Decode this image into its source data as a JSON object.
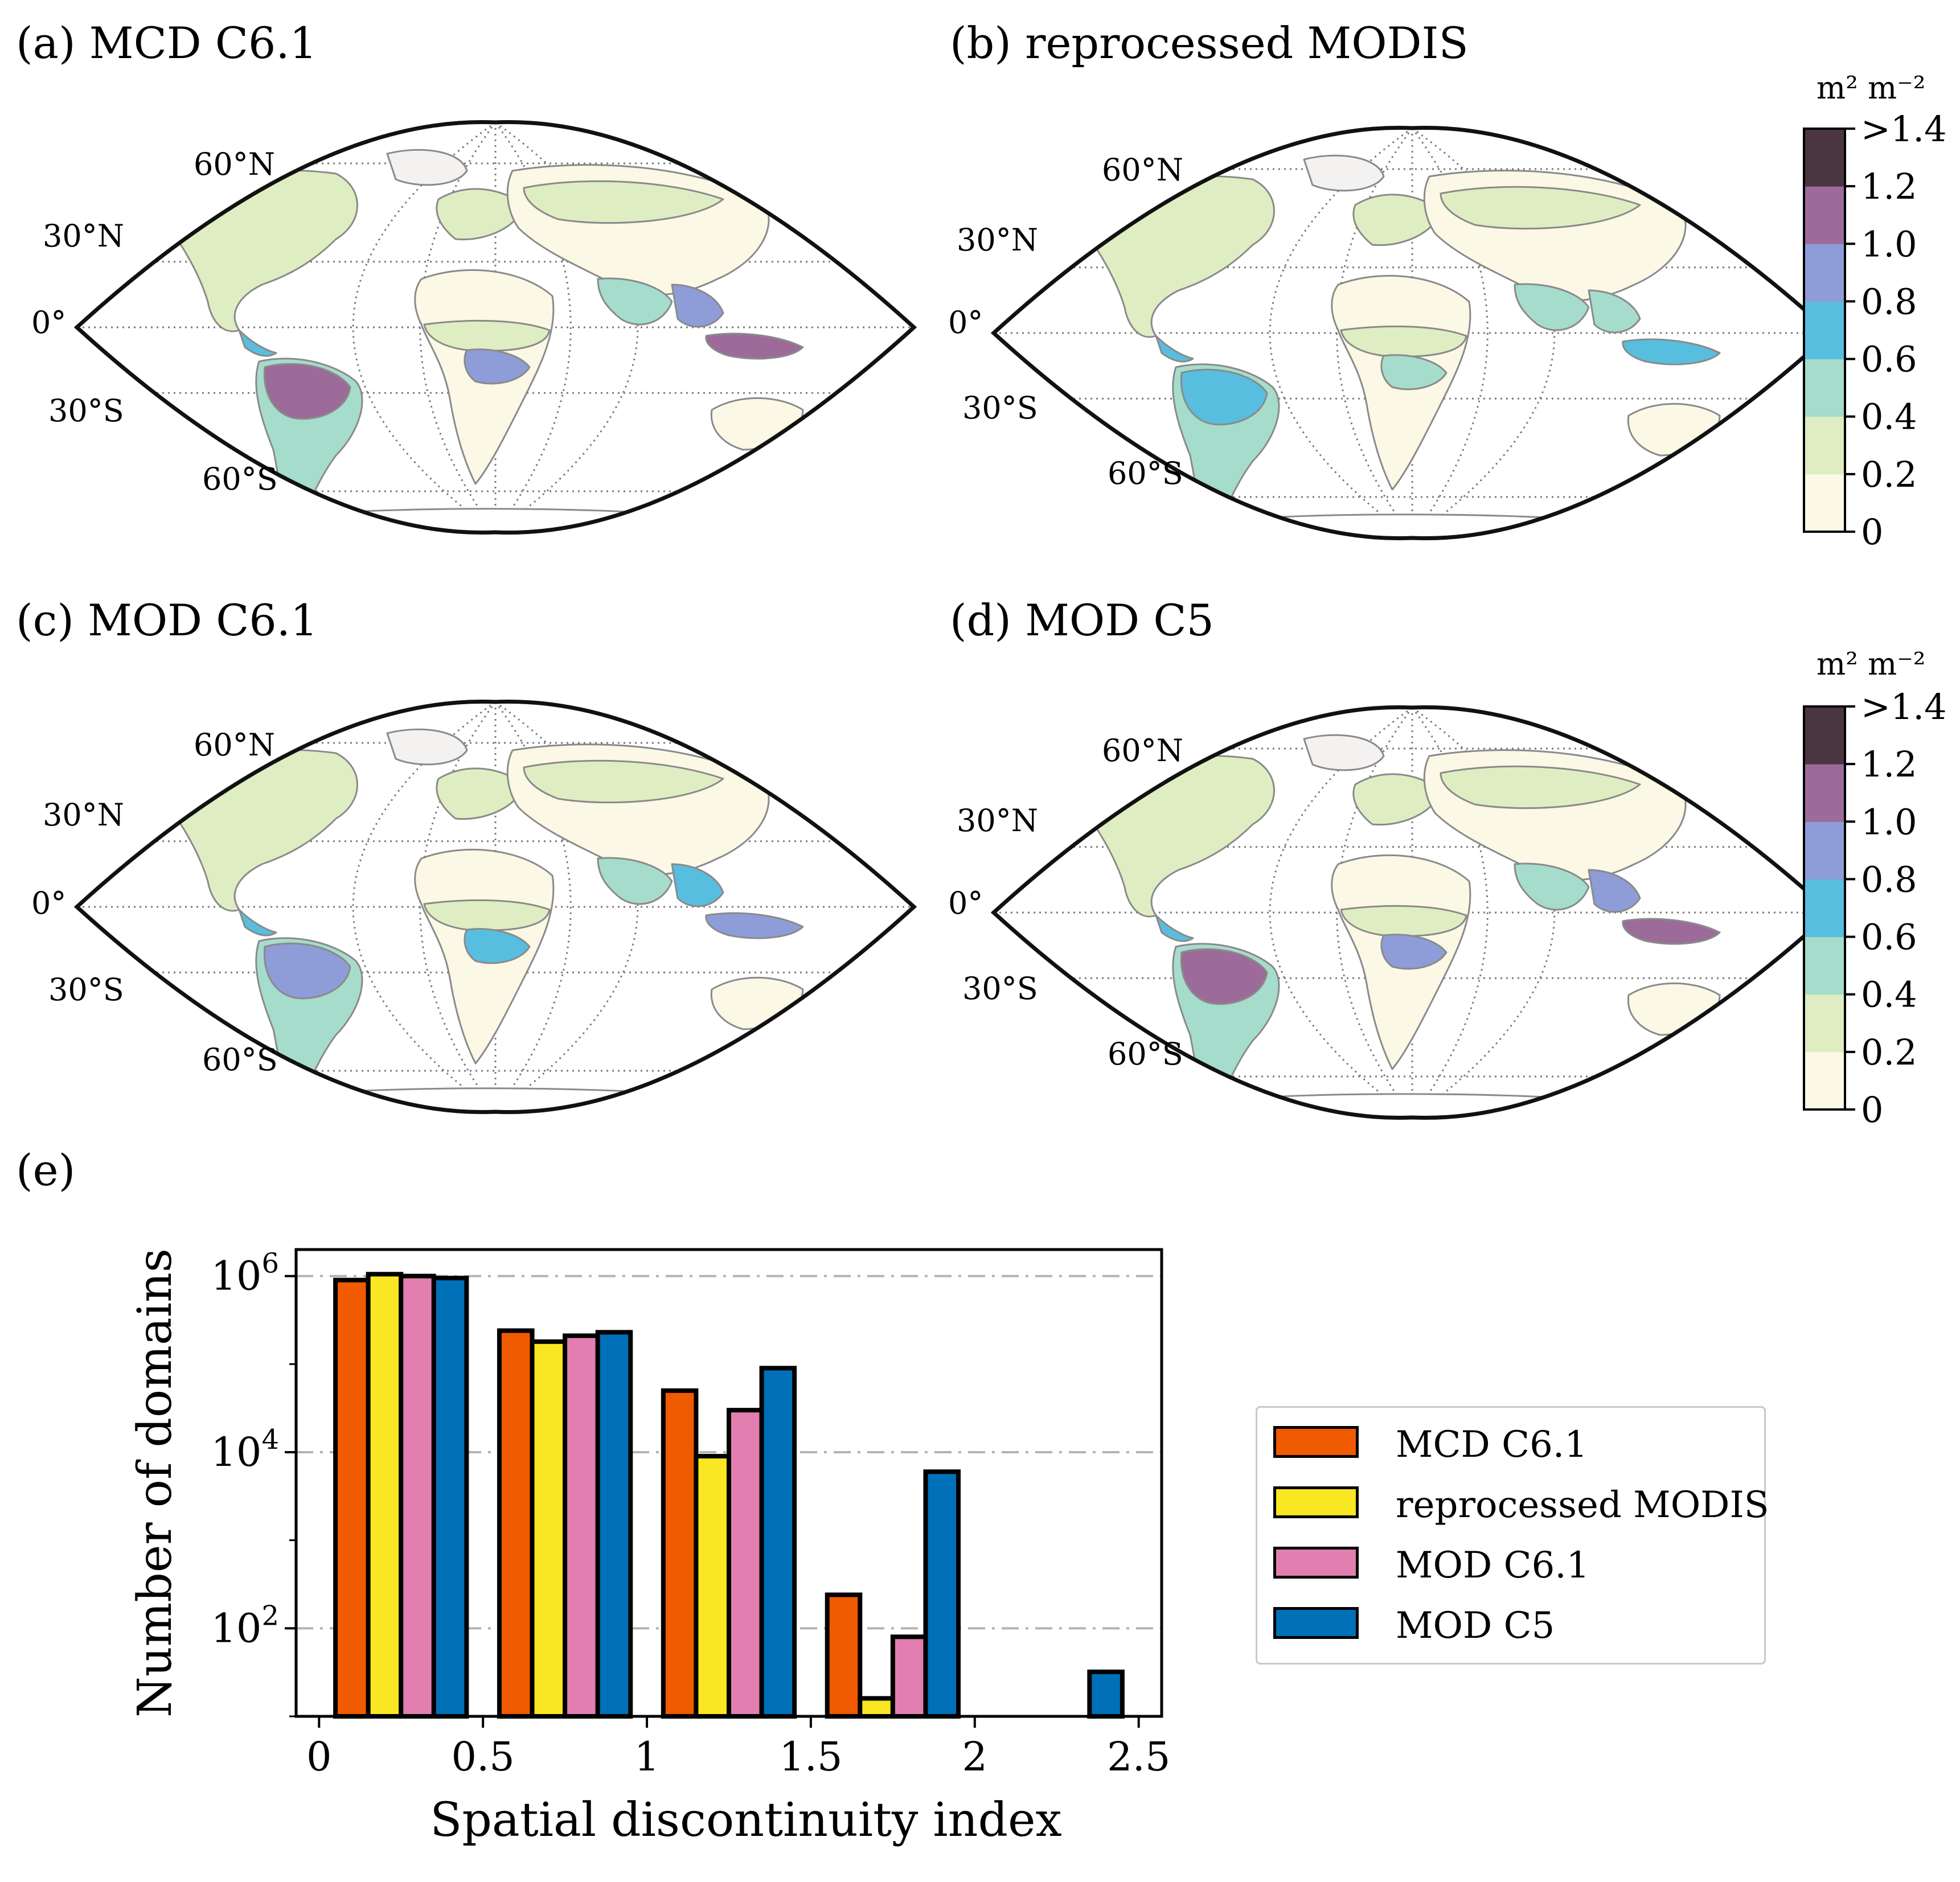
{
  "panels": [
    {
      "label": "(a) MCD C6.1",
      "variant": "a"
    },
    {
      "label": "(b) reprocessed MODIS",
      "variant": "b"
    },
    {
      "label": "(c) MOD C6.1",
      "variant": "c"
    },
    {
      "label": "(d) MOD C5",
      "variant": "d"
    }
  ],
  "map_lat_labels": [
    "60°N",
    "30°N",
    "0°",
    "30°S",
    "60°S"
  ],
  "colorbar": {
    "unit": "m² m⁻²",
    "ticks": [
      "0",
      "0.2",
      "0.4",
      "0.6",
      "0.8",
      "1.0",
      "1.2",
      ">1.4"
    ],
    "colors": [
      "#fbf8e6",
      "#dfeec2",
      "#a6dccb",
      "#58bedf",
      "#8e9dd8",
      "#9c6b9a",
      "#4a3640"
    ]
  },
  "panel_e_label": "(e)",
  "chart_data": {
    "type": "bar",
    "title": "",
    "xlabel": "Spatial discontinuity index",
    "ylabel": "Number of domains",
    "yscale": "log",
    "ylim": [
      10,
      2000000
    ],
    "xlim": [
      -0.07,
      2.57
    ],
    "x_ticks": [
      "0",
      "0.5",
      "1",
      "1.5",
      "2",
      "2.5"
    ],
    "x_tick_values": [
      0,
      0.5,
      1,
      1.5,
      2,
      2.5
    ],
    "y_ticks": [
      {
        "value": 100,
        "base": "10",
        "exp": "2"
      },
      {
        "value": 10000,
        "base": "10",
        "exp": "4"
      },
      {
        "value": 1000000,
        "base": "10",
        "exp": "6"
      }
    ],
    "bin_width": 0.1,
    "series": [
      {
        "name": "MCD C6.1",
        "color": "#f05a00",
        "x": [
          0.1,
          0.6,
          1.1,
          1.6
        ],
        "values": [
          900000,
          240000,
          50000,
          240
        ]
      },
      {
        "name": "reprocessed MODIS",
        "color": "#f8e722",
        "x": [
          0.2,
          0.7,
          1.2,
          1.7
        ],
        "values": [
          1050000,
          180000,
          9000,
          16
        ]
      },
      {
        "name": "MOD C6.1",
        "color": "#e27fb0",
        "x": [
          0.3,
          0.8,
          1.3,
          1.8
        ],
        "values": [
          1000000,
          210000,
          30000,
          80
        ]
      },
      {
        "name": "MOD C5",
        "color": "#0070b8",
        "x": [
          0.4,
          0.9,
          1.4,
          1.9,
          2.4
        ],
        "values": [
          950000,
          230000,
          90000,
          6000,
          32
        ]
      }
    ],
    "legend_position": "right"
  }
}
